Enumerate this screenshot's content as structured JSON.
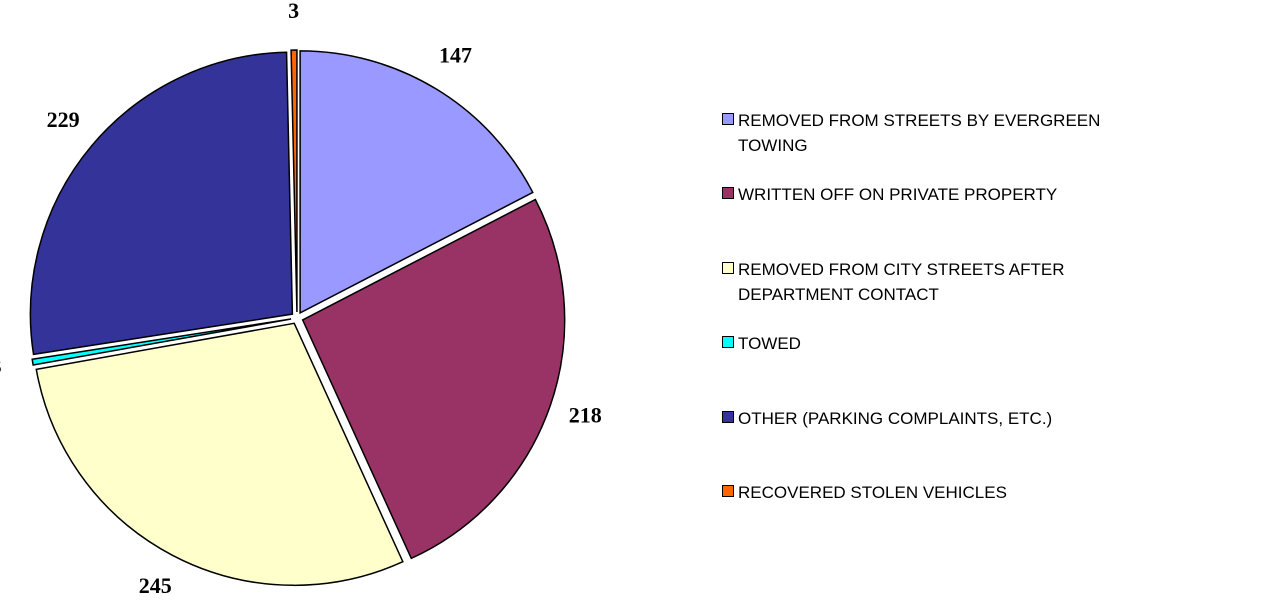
{
  "chart_data": {
    "type": "pie",
    "categories": [
      "REMOVED FROM STREETS BY EVERGREEN TOWING",
      "WRITTEN OFF ON PRIVATE PROPERTY",
      "REMOVED FROM CITY STREETS AFTER DEPARTMENT CONTACT",
      "TOWED",
      "OTHER (PARKING COMPLAINTS, ETC.)",
      "RECOVERED STOLEN VEHICLES"
    ],
    "values": [
      147,
      218,
      245,
      3,
      229,
      3
    ],
    "colors": [
      "#9999ff",
      "#993366",
      "#ffffcc",
      "#00ffff",
      "#333399",
      "#ff6600"
    ],
    "legend": "right"
  }
}
